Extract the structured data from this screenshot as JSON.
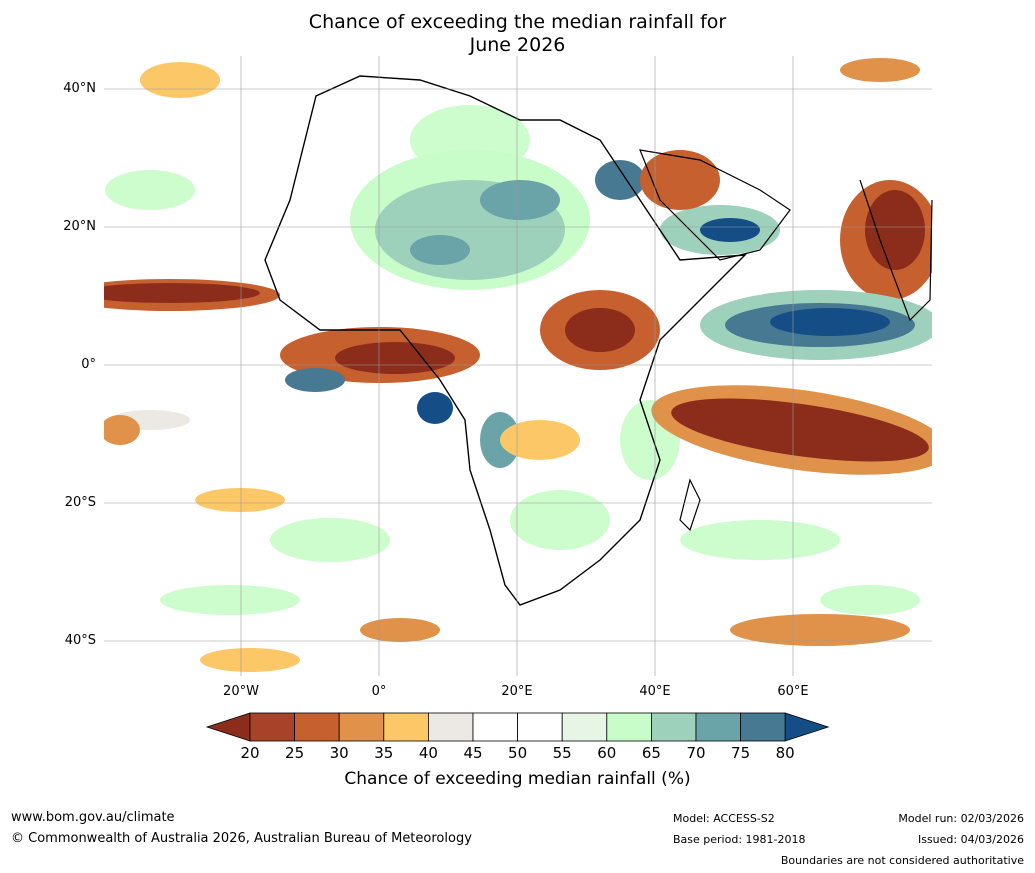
{
  "title": {
    "line1": "Chance of exceeding the median rainfall for",
    "line2": "June 2026"
  },
  "map": {
    "region": "Africa",
    "lat_labels": [
      "40°N",
      "20°N",
      "0°",
      "20°S",
      "40°S"
    ],
    "lon_labels": [
      "20°W",
      "0°",
      "20°E",
      "40°E",
      "60°E"
    ],
    "lat_range": [
      -45,
      45
    ],
    "lon_range": [
      -40,
      80
    ]
  },
  "colorbar": {
    "ticks": [
      "20",
      "25",
      "30",
      "35",
      "40",
      "45",
      "50",
      "55",
      "60",
      "65",
      "70",
      "75",
      "80"
    ],
    "colors": [
      "#8c2d1c",
      "#a8432a",
      "#c7602f",
      "#e0924a",
      "#fcc867",
      "#ece8e3",
      "#ffffff",
      "#ffffff",
      "#e7f5e7",
      "#c8fcc8",
      "#9ed1bc",
      "#6aa3a8",
      "#477993",
      "#154e86"
    ],
    "title": "Chance of exceeding median rainfall (%)"
  },
  "footer": {
    "url": "www.bom.gov.au/climate",
    "copyright": "© Commonwealth of Australia 2026, Australian Bureau of Meteorology",
    "model": "Model: ACCESS-S2",
    "base_period": "Base period: 1981-2018",
    "model_run": "Model run: 02/03/2026",
    "issued": "Issued: 04/03/2026",
    "disclaimer": "Boundaries are not considered authoritative"
  }
}
